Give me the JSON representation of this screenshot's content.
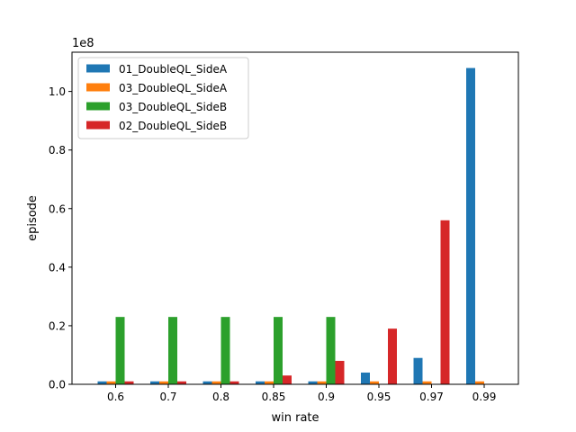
{
  "chart_data": {
    "type": "bar",
    "title": "",
    "xlabel": "win rate",
    "ylabel": "episode",
    "y_scale_label": "1e8",
    "categories": [
      "0.6",
      "0.7",
      "0.8",
      "0.85",
      "0.9",
      "0.95",
      "0.97",
      "0.99"
    ],
    "series": [
      {
        "name": "01_DoubleQL_SideA",
        "color": "#1f77b4",
        "values": [
          1000000,
          1000000,
          1000000,
          1000000,
          1000000,
          4000000,
          9000000,
          108000000
        ]
      },
      {
        "name": "03_DoubleQL_SideA",
        "color": "#ff7f0e",
        "values": [
          1000000,
          1000000,
          1000000,
          1000000,
          1000000,
          1000000,
          1000000,
          1000000
        ]
      },
      {
        "name": "03_DoubleQL_SideB",
        "color": "#2ca02c",
        "values": [
          23000000,
          23000000,
          23000000,
          23000000,
          23000000,
          0,
          0,
          0
        ]
      },
      {
        "name": "02_DoubleQL_SideB",
        "color": "#d62728",
        "values": [
          1000000,
          1000000,
          1000000,
          3000000,
          8000000,
          19000000,
          56000000,
          0
        ]
      }
    ],
    "ylim": [
      0,
      113400000
    ],
    "yticks": [
      0,
      20000000,
      40000000,
      60000000,
      80000000,
      100000000
    ],
    "ytick_labels": [
      "0.0",
      "0.2",
      "0.4",
      "0.6",
      "0.8",
      "1.0"
    ],
    "legend_position": "top-left",
    "grid": false
  }
}
